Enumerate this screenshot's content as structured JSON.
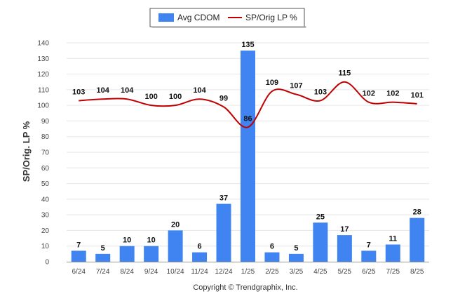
{
  "chart_data": {
    "type": "bar",
    "categories": [
      "6/24",
      "7/24",
      "8/24",
      "9/24",
      "10/24",
      "11/24",
      "12/24",
      "1/25",
      "2/25",
      "3/25",
      "4/25",
      "5/25",
      "6/25",
      "7/25",
      "8/25"
    ],
    "series": [
      {
        "name": "Avg CDOM",
        "type": "bar",
        "color": "#3f84f0",
        "values": [
          7,
          5,
          10,
          10,
          20,
          6,
          37,
          135,
          6,
          5,
          25,
          17,
          7,
          11,
          28
        ]
      },
      {
        "name": "SP/Orig LP %",
        "type": "line",
        "color": "#c00000",
        "values": [
          103,
          104,
          104,
          100,
          100,
          104,
          99,
          86,
          109,
          107,
          103,
          115,
          102,
          102,
          101
        ]
      }
    ],
    "ylabel": "SP/Orig. LP %",
    "xlabel": "",
    "ylim": [
      0,
      140
    ],
    "yticks": [
      0,
      10,
      20,
      30,
      40,
      50,
      60,
      70,
      80,
      90,
      100,
      110,
      120,
      130,
      140
    ],
    "grid": true,
    "legend_position": "top-center",
    "data_labels": true
  },
  "footer": {
    "copyright": "Copyright © Trendgraphix, Inc."
  }
}
